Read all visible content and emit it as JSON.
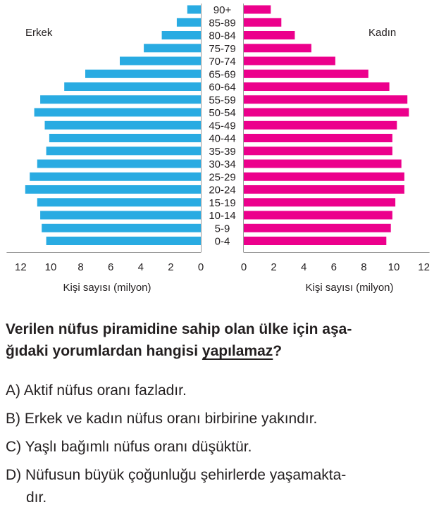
{
  "chart_data": {
    "type": "bar",
    "age_groups": [
      "90+",
      "85-89",
      "80-84",
      "75-79",
      "70-74",
      "65-69",
      "60-64",
      "55-59",
      "50-54",
      "45-49",
      "40-44",
      "35-39",
      "30-34",
      "25-29",
      "20-24",
      "15-19",
      "10-14",
      "5-9",
      "0-4"
    ],
    "series": [
      {
        "name": "Erkek",
        "values": [
          0.9,
          1.6,
          2.6,
          3.8,
          5.4,
          7.7,
          9.1,
          10.7,
          11.1,
          10.4,
          10.1,
          10.3,
          10.9,
          11.4,
          11.7,
          10.9,
          10.7,
          10.6,
          10.3
        ]
      },
      {
        "name": "Kadın",
        "values": [
          1.8,
          2.5,
          3.4,
          4.5,
          6.1,
          8.3,
          9.7,
          10.9,
          11.0,
          10.2,
          9.9,
          9.9,
          10.5,
          10.7,
          10.7,
          10.1,
          9.9,
          9.8,
          9.5
        ]
      }
    ],
    "xlabel_left": "Kişi sayısı (milyon)",
    "xlabel_right": "Kişi sayısı (milyon)",
    "xlim": [
      0,
      12
    ],
    "ticks": [
      0,
      2,
      4,
      6,
      8,
      10,
      12
    ],
    "colors": {
      "Erkek": "#29abe2",
      "Kadın": "#ec008c"
    },
    "grid": false,
    "legend": "series names at top-left and top-right"
  },
  "question": {
    "part1": "Verilen nüfus piramidine sahip olan ülke için aşa-",
    "part2": "ğıdaki yorumlardan hangisi ",
    "underlined": "yapılamaz",
    "end": "?"
  },
  "options": [
    {
      "letter": "A)",
      "text": "Aktif nüfus oranı fazladır."
    },
    {
      "letter": "B)",
      "text": "Erkek ve kadın nüfus oranı birbirine yakındır."
    },
    {
      "letter": "C)",
      "text": "Yaşlı bağımlı nüfus oranı düşüktür."
    },
    {
      "letter": "D)",
      "text": "Nüfusun büyük çoğunluğu şehirlerde yaşamakta-"
    },
    {
      "letter": "",
      "text": "dır."
    }
  ]
}
